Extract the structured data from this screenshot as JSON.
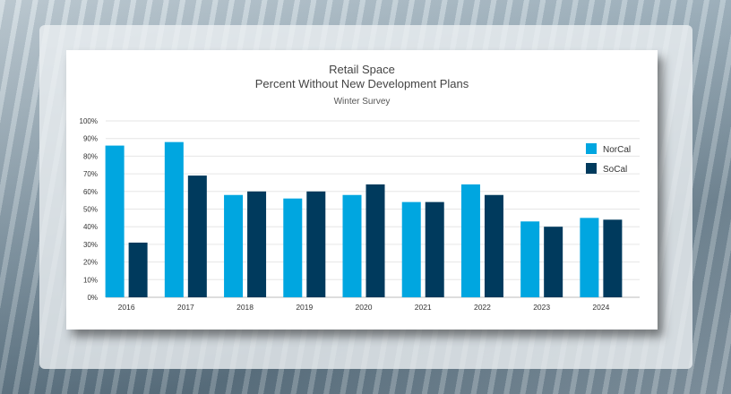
{
  "chart_data": {
    "type": "bar",
    "title": "Retail Space",
    "subtitle": "Percent Without New Development Plans",
    "subtitle2": "Winter Survey",
    "categories": [
      "2016",
      "2017",
      "2018",
      "2019",
      "2020",
      "2021",
      "2022",
      "2023",
      "2024"
    ],
    "series": [
      {
        "name": "NorCal",
        "color": "#00A6E0",
        "values": [
          86,
          88,
          58,
          56,
          58,
          54,
          64,
          43,
          45
        ]
      },
      {
        "name": "SoCal",
        "color": "#003A5D",
        "values": [
          31,
          69,
          60,
          60,
          64,
          54,
          58,
          40,
          44
        ]
      }
    ],
    "ylim": [
      0,
      100
    ],
    "yticks": [
      "0%",
      "10%",
      "20%",
      "30%",
      "40%",
      "50%",
      "60%",
      "70%",
      "80%",
      "90%",
      "100%"
    ],
    "grid": true,
    "legend_position": "right"
  }
}
